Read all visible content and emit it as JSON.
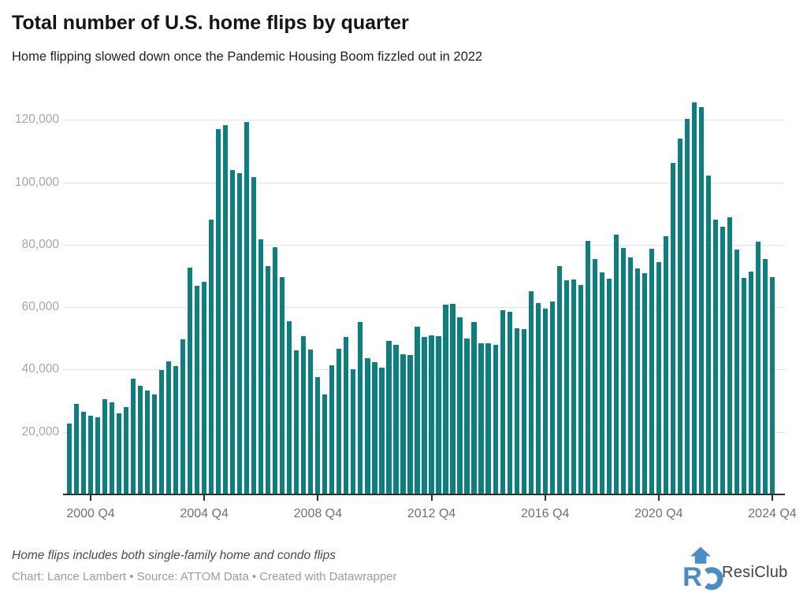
{
  "header": {
    "title": "Total number of U.S. home flips by quarter",
    "subtitle": "Home flipping slowed down once the Pandemic Housing Boom fizzled out in 2022"
  },
  "chart_data": {
    "type": "bar",
    "title": "Total number of U.S. home flips by quarter",
    "subtitle": "Home flipping slowed down once the Pandemic Housing Boom fizzled out in 2022",
    "series_name": "Total U.S. home flips",
    "start_quarter": "2000 Q1",
    "end_quarter": "2024 Q4",
    "values": [
      22600,
      29000,
      26400,
      25300,
      24700,
      30500,
      29400,
      26100,
      28000,
      37200,
      34900,
      33200,
      32100,
      39800,
      42700,
      41000,
      49700,
      72600,
      66800,
      68000,
      88000,
      116900,
      118400,
      104000,
      103000,
      119200,
      101600,
      81700,
      73100,
      79100,
      69700,
      55400,
      46100,
      50800,
      46400,
      37600,
      32100,
      41400,
      46600,
      50400,
      40100,
      55200,
      43600,
      42300,
      40500,
      49100,
      47800,
      44900,
      44700,
      53700,
      50500,
      50900,
      50600,
      60800,
      61000,
      56800,
      49900,
      55300,
      48300,
      48300,
      47900,
      58900,
      58600,
      53100,
      53000,
      65100,
      61300,
      59600,
      61900,
      73200,
      68700,
      68800,
      67100,
      81200,
      75300,
      71000,
      69000,
      83300,
      78900,
      75800,
      72300,
      70800,
      78600,
      74500,
      82700,
      106300,
      114000,
      120400,
      125700,
      124200,
      102100,
      87900,
      85800,
      88700,
      78400,
      69400,
      71500,
      80900,
      75400,
      69600
    ],
    "x_ticks": [
      {
        "index": 3,
        "label": "2000 Q4"
      },
      {
        "index": 19,
        "label": "2004 Q4"
      },
      {
        "index": 35,
        "label": "2008 Q4"
      },
      {
        "index": 51,
        "label": "2012 Q4"
      },
      {
        "index": 67,
        "label": "2016 Q4"
      },
      {
        "index": 83,
        "label": "2020 Q4"
      },
      {
        "index": 99,
        "label": "2024 Q4"
      }
    ],
    "y_ticks": [
      {
        "value": 20000,
        "label": "20,000"
      },
      {
        "value": 40000,
        "label": "40,000"
      },
      {
        "value": 60000,
        "label": "60,000"
      },
      {
        "value": 80000,
        "label": "80,000"
      },
      {
        "value": 100000,
        "label": "100,000"
      },
      {
        "value": 120000,
        "label": "120,000"
      }
    ],
    "ylim": [
      0,
      128000
    ],
    "grid": "horizontal",
    "legend": "none",
    "bar_color": "#0d7f7f"
  },
  "footer": {
    "note": "Home flips includes both single-family home and condo flips",
    "credit": "Chart: Lance Lambert • Source: ATTOM Data • Created with Datawrapper",
    "brand": "ResiClub"
  },
  "colors": {
    "bar": "#0d7f7f",
    "axis": "#2d2d2d",
    "gridline": "#e2e2e2",
    "y_label": "#a6a6a6",
    "x_label": "#707070",
    "logo_blue": "#4a8dc6"
  }
}
